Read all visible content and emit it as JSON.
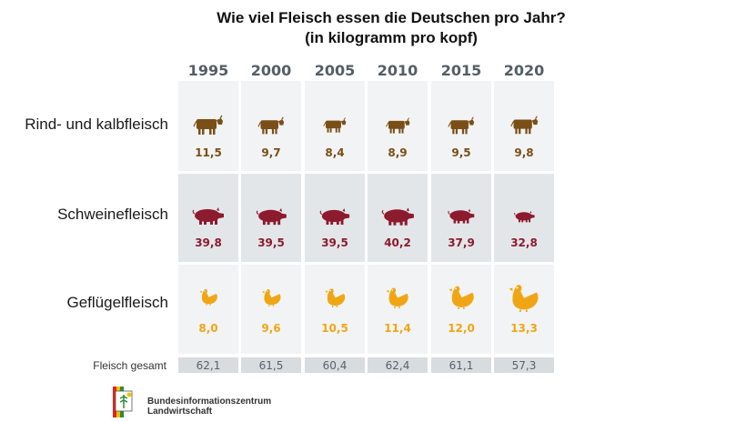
{
  "chart_data": {
    "type": "table",
    "title": "Wie viel Fleisch essen die Deutschen pro Jahr?",
    "subtitle": "(in kilogramm pro kopf)",
    "categories": [
      "1995",
      "2000",
      "2005",
      "2010",
      "2015",
      "2020"
    ],
    "series": [
      {
        "name": "Rind- und kalbfleisch",
        "icon": "cow-icon",
        "color": "#7a4f17",
        "values": [
          "11,5",
          "9,7",
          "8,4",
          "8,9",
          "9,5",
          "9,8"
        ]
      },
      {
        "name": "Schweinefleisch",
        "icon": "pig-icon",
        "color": "#8c1b2d",
        "values": [
          "39,8",
          "39,5",
          "39,5",
          "40,2",
          "37,9",
          "32,8"
        ]
      },
      {
        "name": "Geflügelfleisch",
        "icon": "chicken-icon",
        "color": "#f0a614",
        "values": [
          "8,0",
          "9,6",
          "10,5",
          "11,4",
          "12,0",
          "13,3"
        ]
      }
    ],
    "total": {
      "label": "Fleisch gesamt",
      "values": [
        "62,1",
        "61,5",
        "60,4",
        "62,4",
        "61,1",
        "57,3"
      ]
    }
  },
  "colors": {
    "cell_light": "#f2f3f4",
    "cell_dark": "#e3e6e9",
    "total_cell": "#d9dcdf"
  },
  "logo": {
    "line1": "Bundesinformationszentrum",
    "line2": "Landwirtschaft"
  }
}
